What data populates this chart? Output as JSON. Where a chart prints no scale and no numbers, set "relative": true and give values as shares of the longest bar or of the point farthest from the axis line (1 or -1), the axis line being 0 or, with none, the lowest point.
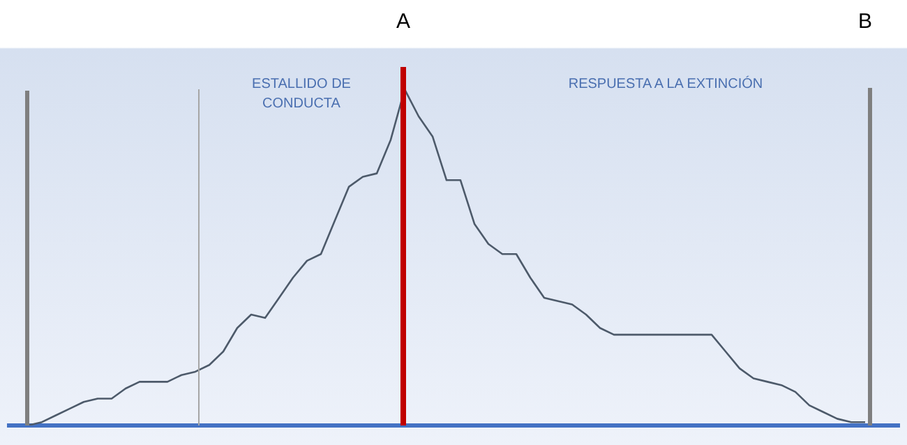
{
  "chart_data": {
    "type": "line",
    "relative": true,
    "tick_labels": false,
    "legend": false,
    "marker": "none",
    "line_style": "solid",
    "categories": [
      null,
      null,
      null,
      null,
      null,
      null,
      null,
      null,
      null,
      null,
      null,
      null,
      null,
      null,
      null,
      null,
      null,
      null,
      null,
      null,
      null,
      null,
      null,
      null,
      null,
      null,
      null,
      null,
      null,
      null,
      null,
      null,
      null,
      null,
      null,
      null,
      null,
      null,
      null,
      null,
      null,
      null,
      null,
      null,
      null,
      null,
      null,
      null,
      null,
      null,
      null,
      null,
      null,
      null,
      null,
      null,
      null,
      null,
      null,
      null,
      null
    ],
    "series": [
      {
        "color": "#4d5a6a",
        "values": [
          0,
          0.01,
          0.03,
          0.05,
          0.07,
          0.08,
          0.08,
          0.11,
          0.13,
          0.13,
          0.13,
          0.15,
          0.16,
          0.18,
          0.22,
          0.29,
          0.33,
          0.32,
          0.38,
          0.44,
          0.49,
          0.51,
          0.61,
          0.71,
          0.74,
          0.75,
          0.85,
          1,
          0.92,
          0.86,
          0.73,
          0.73,
          0.6,
          0.54,
          0.51,
          0.51,
          0.44,
          0.38,
          0.37,
          0.36,
          0.33,
          0.29,
          0.27,
          0.27,
          0.27,
          0.27,
          0.27,
          0.27,
          0.27,
          0.27,
          0.22,
          0.17,
          0.14,
          0.13,
          0.12,
          0.1,
          0.06,
          0.04,
          0.02,
          0.01,
          0.01
        ]
      }
    ],
    "annotations": [
      "A",
      "B",
      "ESTALLIDO DE CONDUCTA",
      "RESPUESTA A LA EXTINCIÓN"
    ]
  }
}
